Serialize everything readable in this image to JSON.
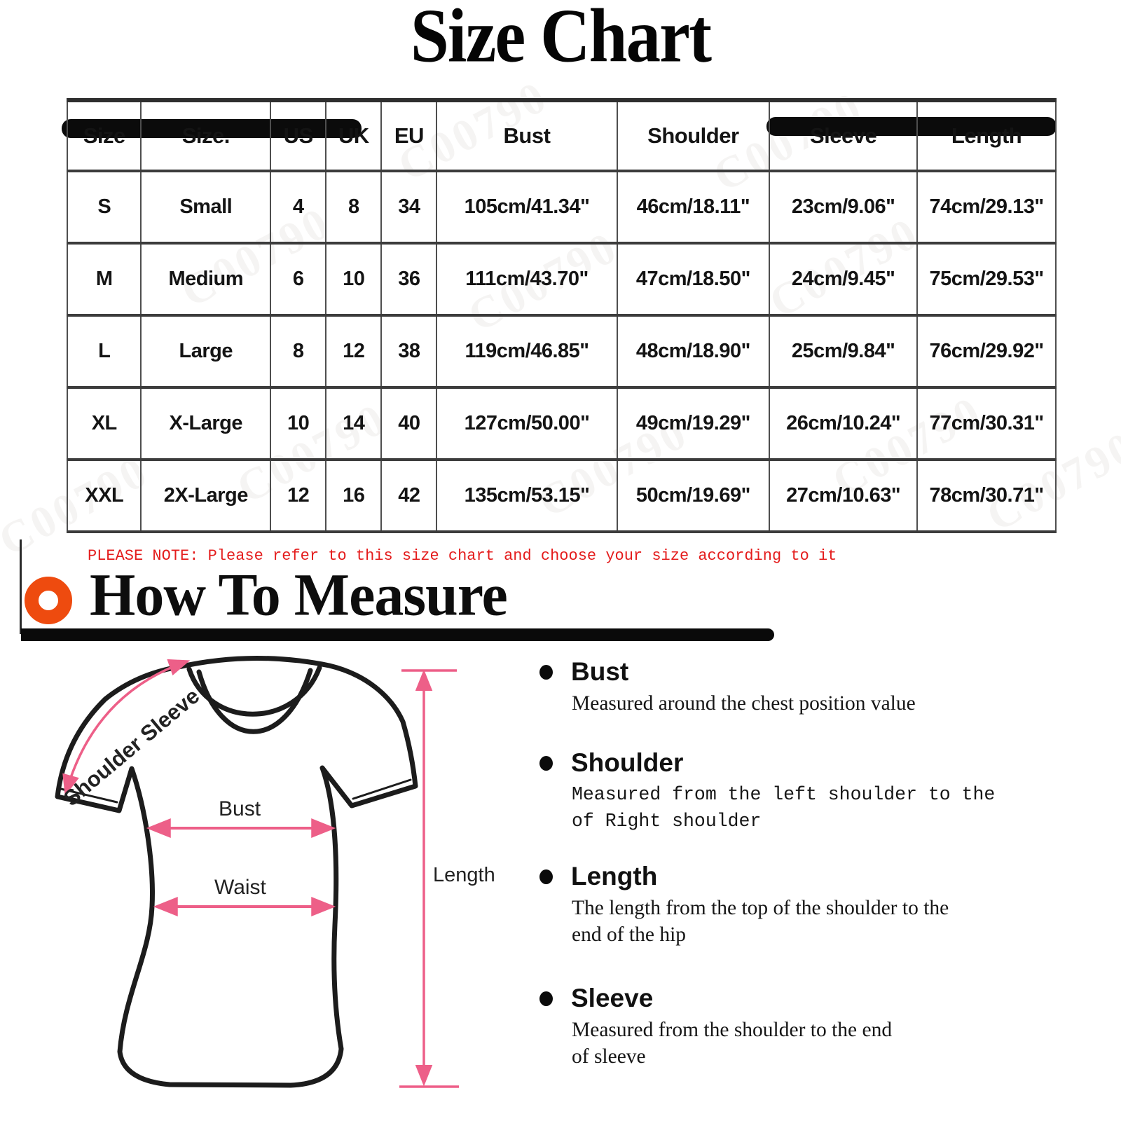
{
  "title": "Size Chart",
  "size_table": {
    "headers": [
      "Size",
      "Size.",
      "US",
      "UK",
      "EU",
      "Bust",
      "Shoulder",
      "Sleeve",
      "Length"
    ],
    "rows": [
      [
        "S",
        "Small",
        "4",
        "8",
        "34",
        "105cm/41.34\"",
        "46cm/18.11\"",
        "23cm/9.06\"",
        "74cm/29.13\""
      ],
      [
        "M",
        "Medium",
        "6",
        "10",
        "36",
        "111cm/43.70\"",
        "47cm/18.50\"",
        "24cm/9.45\"",
        "75cm/29.53\""
      ],
      [
        "L",
        "Large",
        "8",
        "12",
        "38",
        "119cm/46.85\"",
        "48cm/18.90\"",
        "25cm/9.84\"",
        "76cm/29.92\""
      ],
      [
        "XL",
        "X-Large",
        "10",
        "14",
        "40",
        "127cm/50.00\"",
        "49cm/19.29\"",
        "26cm/10.24\"",
        "77cm/30.31\""
      ],
      [
        "XXL",
        "2X-Large",
        "12",
        "16",
        "42",
        "135cm/53.15\"",
        "50cm/19.69\"",
        "27cm/10.63\"",
        "78cm/30.71\""
      ]
    ]
  },
  "note": "PLEASE NOTE: Please refer to this size chart and choose your size according to it",
  "how_to_measure": {
    "heading": "How To Measure",
    "items": [
      {
        "label": "Bust",
        "description": "Measured around the chest position value"
      },
      {
        "label": "Shoulder",
        "description": "Measured from the left shoulder to the of Right shoulder"
      },
      {
        "label": "Length",
        "description": "The length from the top of the shoulder to the end of the hip"
      },
      {
        "label": "Sleeve",
        "description": "Measured from the shoulder to the end of sleeve"
      }
    ]
  },
  "diagram": {
    "labels": {
      "shoulder_sleeve": "Shoulder Sleeve",
      "bust": "Bust",
      "waist": "Waist",
      "length": "Length"
    }
  },
  "colors": {
    "accent_pink": "#ed5f88",
    "note_red": "#e41c1c",
    "ring_orange": "#ee4b0f",
    "bar_black": "#0b0b0b"
  },
  "watermark": "C00790"
}
